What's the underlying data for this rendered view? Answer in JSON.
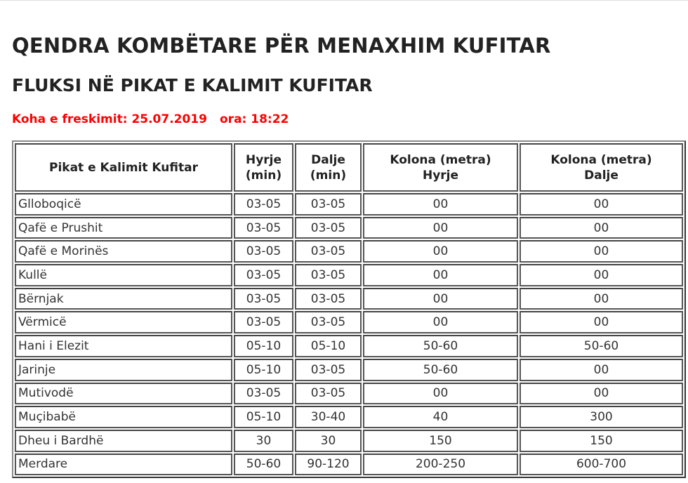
{
  "header": {
    "title": "QENDRA KOMBËTARE PËR MENAXHIM KUFITAR",
    "subtitle": "FLUKSI NË PIKAT E KALIMIT KUFITAR",
    "refresh_label": "Koha e freskimit: 25.07.2019",
    "time_label": "ora: 18:22"
  },
  "table": {
    "columns": [
      {
        "line1": "Pikat e Kalimit Kufitar",
        "line2": ""
      },
      {
        "line1": "Hyrje",
        "line2": "(min)"
      },
      {
        "line1": "Dalje",
        "line2": "(min)"
      },
      {
        "line1": "Kolona (metra)",
        "line2": "Hyrje"
      },
      {
        "line1": "Kolona (metra)",
        "line2": "Dalje"
      }
    ],
    "rows": [
      [
        "Glloboqicë",
        "03-05",
        "03-05",
        "00",
        "00"
      ],
      [
        "Qafë e Prushit",
        "03-05",
        "03-05",
        "00",
        "00"
      ],
      [
        "Qafë e Morinës",
        "03-05",
        "03-05",
        "00",
        "00"
      ],
      [
        "Kullë",
        "03-05",
        "03-05",
        "00",
        "00"
      ],
      [
        "Bërnjak",
        "03-05",
        "03-05",
        "00",
        "00"
      ],
      [
        "Vërmicë",
        "03-05",
        "03-05",
        "00",
        "00"
      ],
      [
        "Hani i Elezit",
        "05-10",
        "05-10",
        "50-60",
        "50-60"
      ],
      [
        "Jarinje",
        "05-10",
        "03-05",
        "50-60",
        "00"
      ],
      [
        "Mutivodë",
        "03-05",
        "03-05",
        "00",
        "00"
      ],
      [
        "Muçibabë",
        "05-10",
        "30-40",
        "40",
        "300"
      ],
      [
        "Dheu i Bardhë",
        "30",
        "30",
        "150",
        "150"
      ],
      [
        "Merdare",
        "50-60",
        "90-120",
        "200-250",
        "600-700"
      ]
    ]
  }
}
